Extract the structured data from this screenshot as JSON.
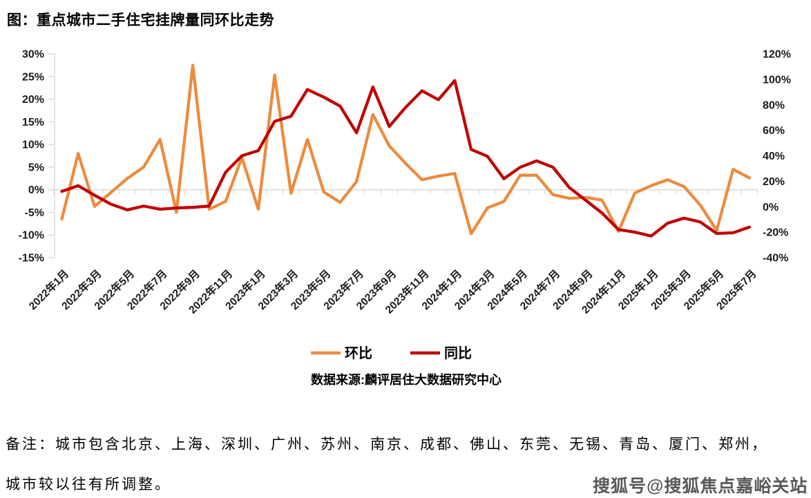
{
  "page": {
    "title": "图：重点城市二手住宅挂牌量同环比走势",
    "note_line1": "备注：城市包含北京、上海、深圳、广州、苏州、南京、成都、佛山、东莞、无锡、青岛、厦门、郑州，",
    "note_line2": "城市较以往有所调整。",
    "watermark": "搜狐号@搜狐焦点嘉峪关站"
  },
  "chart_data": {
    "type": "line",
    "title": "重点城市二手住宅挂牌量同环比走势",
    "source": "数据来源:麟评居住大数据研究中心",
    "legend_position": "bottom",
    "gridlines": false,
    "categories": [
      "2022年1月",
      "2022年2月",
      "2022年3月",
      "2022年4月",
      "2022年5月",
      "2022年6月",
      "2022年7月",
      "2022年8月",
      "2022年9月",
      "2022年10月",
      "2022年11月",
      "2022年12月",
      "2023年1月",
      "2023年2月",
      "2023年3月",
      "2023年4月",
      "2023年5月",
      "2023年6月",
      "2023年7月",
      "2023年8月",
      "2023年9月",
      "2023年10月",
      "2023年11月",
      "2023年12月",
      "2024年1月",
      "2024年2月",
      "2024年3月",
      "2024年4月",
      "2024年5月",
      "2024年6月",
      "2024年7月",
      "2024年8月",
      "2024年9月",
      "2024年10月",
      "2024年11月",
      "2024年12月",
      "2025年1月",
      "2025年2月",
      "2025年3月",
      "2025年4月",
      "2025年5月",
      "2025年6月",
      "2025年7月"
    ],
    "x_label_every": 2,
    "x_tick_labels": [
      "2022年1月",
      "2022年3月",
      "2022年5月",
      "2022年7月",
      "2022年9月",
      "2022年11月",
      "2023年1月",
      "2023年3月",
      "2023年5月",
      "2023年7月",
      "2023年9月",
      "2023年11月",
      "2024年1月",
      "2024年3月",
      "2024年5月",
      "2024年7月",
      "2024年9月",
      "2024年11月",
      "2025年1月",
      "2025年3月",
      "2025年5月",
      "2025年7月"
    ],
    "left_axis": {
      "min": -15,
      "max": 30,
      "step": 5,
      "suffix": "%",
      "labels": [
        "30%",
        "25%",
        "20%",
        "15%",
        "10%",
        "5%",
        "0%",
        "-5%",
        "-10%",
        "-15%"
      ]
    },
    "right_axis": {
      "min": -40,
      "max": 120,
      "step": 20,
      "suffix": "%",
      "labels": [
        "120%",
        "100%",
        "80%",
        "60%",
        "40%",
        "20%",
        "0%",
        "-20%",
        "-40%"
      ]
    },
    "series": [
      {
        "name": "环比",
        "axis": "left",
        "color": "#EC8B3D",
        "values": [
          -6.5,
          8,
          -3.7,
          -0.6,
          2.5,
          5,
          11.1,
          -5,
          27.5,
          -4.3,
          -2.6,
          7.1,
          -4.3,
          25.3,
          -0.8,
          11.1,
          -0.5,
          -2.8,
          1.8,
          16.6,
          9.7,
          5.8,
          2.2,
          3,
          3.6,
          -9.7,
          -4,
          -2.6,
          3.2,
          3.2,
          -1.1,
          -1.9,
          -1.7,
          -2.3,
          -9.2,
          -0.7,
          0.9,
          2.2,
          0.7,
          -3.4,
          -9,
          4.5,
          2.6
        ]
      },
      {
        "name": "同比",
        "axis": "right",
        "color": "#C00000",
        "values": [
          12,
          16.5,
          9,
          2,
          -2.5,
          0.5,
          -2,
          -1,
          -0.5,
          0.5,
          27,
          40,
          44,
          67,
          71,
          92,
          86,
          79,
          58,
          94,
          63,
          78,
          91,
          84,
          99,
          45,
          39.5,
          22,
          31,
          36,
          31,
          15,
          5,
          -5,
          -18,
          -20,
          -23,
          -13,
          -9,
          -12,
          -21,
          -20.5,
          -16
        ]
      }
    ],
    "axis_color": "#D6D6D6",
    "label_color": "#1a1a1a"
  }
}
